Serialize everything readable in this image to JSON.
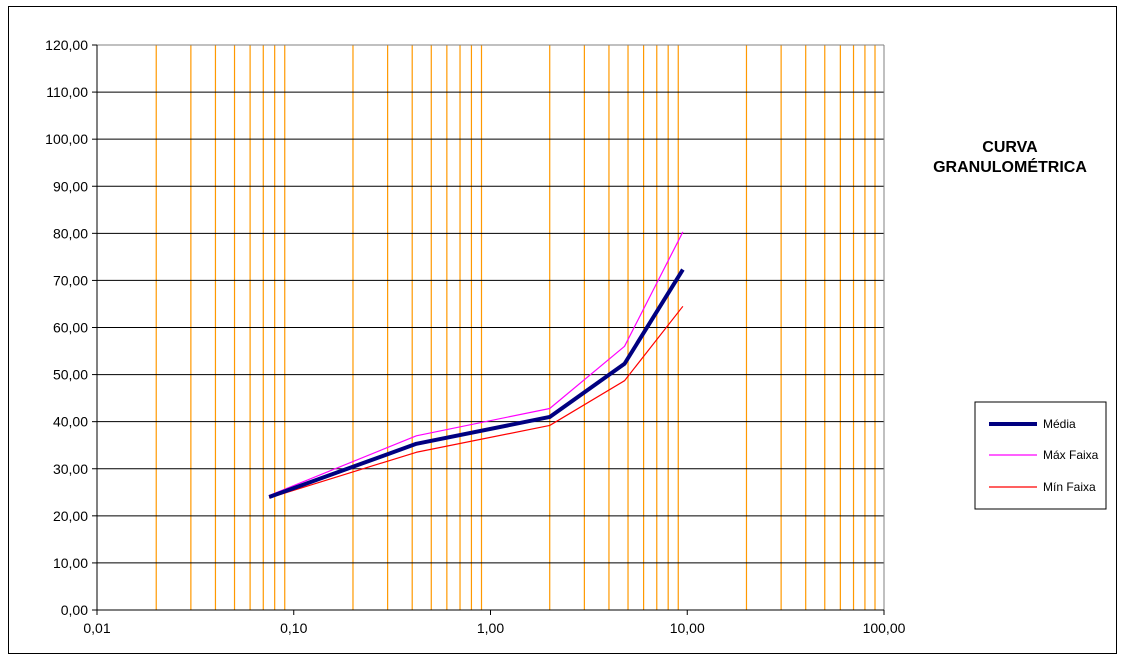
{
  "chart_data": {
    "type": "line",
    "title_lines": [
      "CURVA",
      "GRANULOMÉTRICA"
    ],
    "xlabel": "",
    "ylabel": "",
    "x_scale": "log",
    "xlim": [
      0.01,
      100
    ],
    "ylim": [
      0,
      120
    ],
    "y_ticks": [
      0,
      10,
      20,
      30,
      40,
      50,
      60,
      70,
      80,
      90,
      100,
      110,
      120
    ],
    "y_tick_labels": [
      "0,00",
      "10,00",
      "20,00",
      "30,00",
      "40,00",
      "50,00",
      "60,00",
      "70,00",
      "80,00",
      "90,00",
      "100,00",
      "110,00",
      "120,00"
    ],
    "x_ticks": [
      0.01,
      0.1,
      1,
      10,
      100
    ],
    "x_tick_labels": [
      "0,01",
      "0,10",
      "1,00",
      "10,00",
      "100,00"
    ],
    "grid": {
      "horizontal": true,
      "vertical_minor": true
    },
    "legend_position": "right",
    "series": [
      {
        "name": "Média",
        "color": "#000080",
        "style": "thick",
        "points": [
          [
            0.075,
            24.0
          ],
          [
            0.42,
            35.3
          ],
          [
            2.0,
            41.0
          ],
          [
            4.8,
            52.3
          ],
          [
            9.5,
            72.3
          ]
        ]
      },
      {
        "name": "Máx Faixa",
        "color": "#ff00ff",
        "style": "thin",
        "points": [
          [
            0.075,
            24.3
          ],
          [
            0.42,
            37.0
          ],
          [
            2.0,
            42.8
          ],
          [
            4.8,
            56.0
          ],
          [
            9.5,
            80.3
          ]
        ]
      },
      {
        "name": "Mín Faixa",
        "color": "#ff0000",
        "style": "thin",
        "points": [
          [
            0.075,
            23.8
          ],
          [
            0.42,
            33.5
          ],
          [
            2.0,
            39.2
          ],
          [
            4.8,
            48.7
          ],
          [
            9.5,
            64.5
          ]
        ]
      }
    ],
    "colors": {
      "horizontal_grid": "#000000",
      "vertical_grid": "#ff9900",
      "plot_border": "#808080"
    }
  }
}
